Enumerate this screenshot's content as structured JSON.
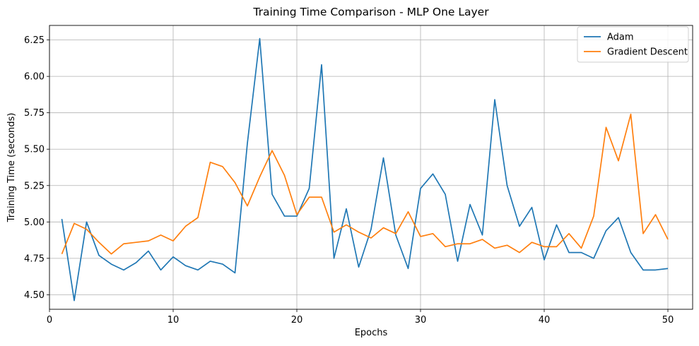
{
  "chart_data": {
    "type": "line",
    "title": "Training Time Comparison - MLP One Layer",
    "xlabel": "Epochs",
    "ylabel": "Training Time (seconds)",
    "xlim": [
      0,
      52
    ],
    "ylim": [
      4.4,
      6.35
    ],
    "xticks": [
      0,
      10,
      20,
      30,
      40,
      50
    ],
    "yticks": [
      4.5,
      4.75,
      5.0,
      5.25,
      5.5,
      5.75,
      6.0,
      6.25
    ],
    "grid": true,
    "legend_position": "top-right",
    "x": [
      1,
      2,
      3,
      4,
      5,
      6,
      7,
      8,
      9,
      10,
      11,
      12,
      13,
      14,
      15,
      16,
      17,
      18,
      19,
      20,
      21,
      22,
      23,
      24,
      25,
      26,
      27,
      28,
      29,
      30,
      31,
      32,
      33,
      34,
      35,
      36,
      37,
      38,
      39,
      40,
      41,
      42,
      43,
      44,
      45,
      46,
      47,
      48,
      49,
      50
    ],
    "series": [
      {
        "name": "Adam",
        "color": "#1f77b4",
        "values": [
          5.02,
          4.46,
          5.0,
          4.77,
          4.71,
          4.67,
          4.72,
          4.8,
          4.67,
          4.76,
          4.7,
          4.67,
          4.73,
          4.71,
          4.65,
          5.54,
          6.26,
          5.19,
          5.04,
          5.04,
          5.23,
          6.08,
          4.75,
          5.09,
          4.69,
          4.95,
          5.44,
          4.91,
          4.68,
          5.23,
          5.33,
          5.19,
          4.73,
          5.12,
          4.91,
          5.84,
          5.25,
          4.97,
          5.1,
          4.74,
          4.98,
          4.79,
          4.79,
          4.75,
          4.94,
          5.03,
          4.79,
          4.67,
          4.67,
          4.68
        ]
      },
      {
        "name": "Gradient Descent",
        "color": "#ff7f0e",
        "values": [
          4.78,
          4.99,
          4.95,
          4.86,
          4.78,
          4.85,
          4.86,
          4.87,
          4.91,
          4.87,
          4.97,
          5.03,
          5.41,
          5.38,
          5.27,
          5.11,
          5.31,
          5.49,
          5.32,
          5.05,
          5.17,
          5.17,
          4.93,
          4.98,
          4.93,
          4.89,
          4.96,
          4.92,
          5.07,
          4.9,
          4.92,
          4.83,
          4.85,
          4.85,
          4.88,
          4.82,
          4.84,
          4.79,
          4.86,
          4.83,
          4.83,
          4.92,
          4.82,
          5.04,
          5.65,
          5.42,
          5.74,
          4.92,
          5.05,
          4.88
        ]
      }
    ]
  }
}
